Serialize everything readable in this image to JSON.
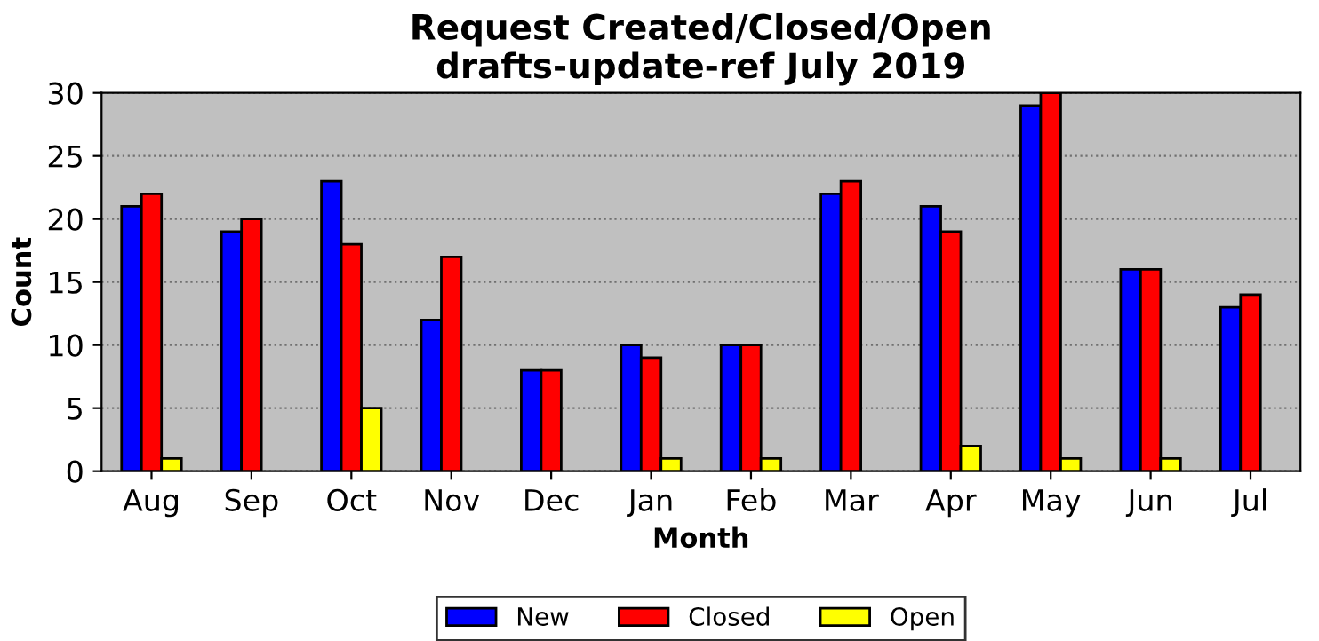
{
  "chart_data": {
    "type": "bar",
    "title": "Request Created/Closed/Open\ndrafts-update-ref July 2019",
    "xlabel": "Month",
    "ylabel": "Count",
    "categories": [
      "Aug",
      "Sep",
      "Oct",
      "Nov",
      "Dec",
      "Jan",
      "Feb",
      "Mar",
      "Apr",
      "May",
      "Jun",
      "Jul"
    ],
    "series": [
      {
        "name": "New",
        "color": "#0000ff",
        "values": [
          21,
          19,
          23,
          12,
          8,
          10,
          10,
          22,
          21,
          29,
          16,
          13
        ]
      },
      {
        "name": "Closed",
        "color": "#ff0000",
        "values": [
          22,
          20,
          18,
          17,
          8,
          9,
          10,
          23,
          19,
          30,
          16,
          14
        ]
      },
      {
        "name": "Open",
        "color": "#ffff00",
        "values": [
          1,
          0,
          5,
          0,
          0,
          1,
          1,
          0,
          2,
          1,
          1,
          0
        ]
      }
    ],
    "ylim": [
      0,
      30
    ],
    "yticks": [
      0,
      5,
      10,
      15,
      20,
      25,
      30
    ],
    "grid": "y",
    "legend": "bottom"
  }
}
